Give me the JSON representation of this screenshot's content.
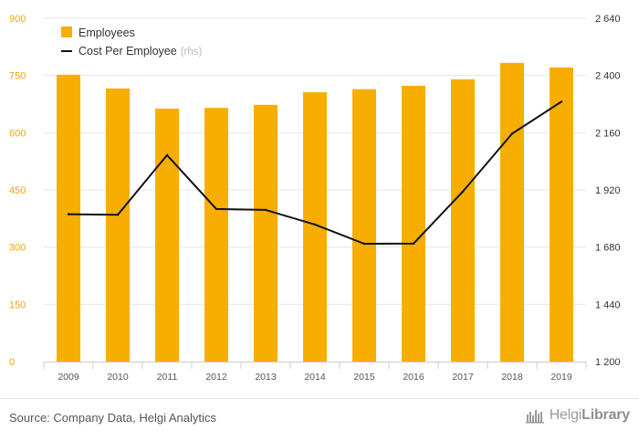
{
  "chart_data": {
    "type": "bar+line",
    "categories": [
      "2009",
      "2010",
      "2011",
      "2012",
      "2013",
      "2014",
      "2015",
      "2016",
      "2017",
      "2018",
      "2019"
    ],
    "series": [
      {
        "name": "Employees",
        "type": "bar",
        "axis": "left",
        "color": "#f7ae00",
        "values": [
          752,
          716,
          663,
          665,
          673,
          706,
          714,
          723,
          740,
          783,
          771
        ]
      },
      {
        "name": "Cost Per Employee",
        "type": "line",
        "axis": "right",
        "color": "#111111",
        "values": [
          1818,
          1816,
          2066,
          1840,
          1836,
          1775,
          1694,
          1695,
          1913,
          2156,
          2290
        ]
      }
    ],
    "left_axis": {
      "min": 0,
      "max": 900,
      "ticks": [
        "0",
        "150",
        "300",
        "450",
        "600",
        "750",
        "900"
      ]
    },
    "right_axis": {
      "min": 1200,
      "max": 2640,
      "ticks": [
        "1 200",
        "1 440",
        "1 680",
        "1 920",
        "2 160",
        "2 400",
        "2 640"
      ]
    },
    "legend": {
      "position": "top-left",
      "rhs_note": "(rhs)"
    },
    "grid": true
  },
  "footer": {
    "source": "Source: Company Data, Helgi Analytics",
    "logo_light": "Helgi",
    "logo_bold": "Library",
    "logo_icon": "library-bars-icon"
  }
}
